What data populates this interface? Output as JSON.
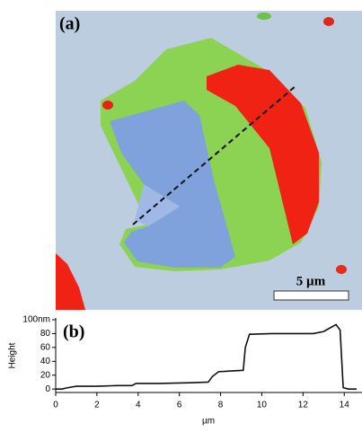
{
  "panel_a": {
    "label": "(a)",
    "scale_bar": "5 µm"
  },
  "chart_data": {
    "type": "line",
    "label": "(b)",
    "y_label": "Height",
    "x_label": "µm",
    "x": [
      0,
      0.3,
      0.6,
      1.0,
      2.0,
      3.0,
      3.7,
      3.9,
      5.0,
      6.5,
      7.4,
      7.6,
      7.9,
      8.5,
      9.1,
      9.2,
      9.4,
      10.5,
      11.5,
      12.5,
      13.0,
      13.3,
      13.6,
      13.8,
      13.95,
      14.2,
      14.6
    ],
    "values": [
      0,
      0,
      2,
      4,
      4,
      5,
      5,
      8,
      8,
      9,
      10,
      18,
      25,
      26,
      27,
      60,
      79,
      80,
      80,
      80,
      83,
      88,
      93,
      85,
      2,
      0,
      0
    ],
    "color": "#111111",
    "xlim": [
      0,
      14.6
    ],
    "xticks": [
      0,
      2,
      4,
      6,
      8,
      10,
      12,
      14
    ],
    "ylim": [
      -5,
      100
    ],
    "yticks": [
      0,
      20,
      40,
      60,
      80,
      {
        "value": 100,
        "label": "100nm"
      }
    ]
  }
}
